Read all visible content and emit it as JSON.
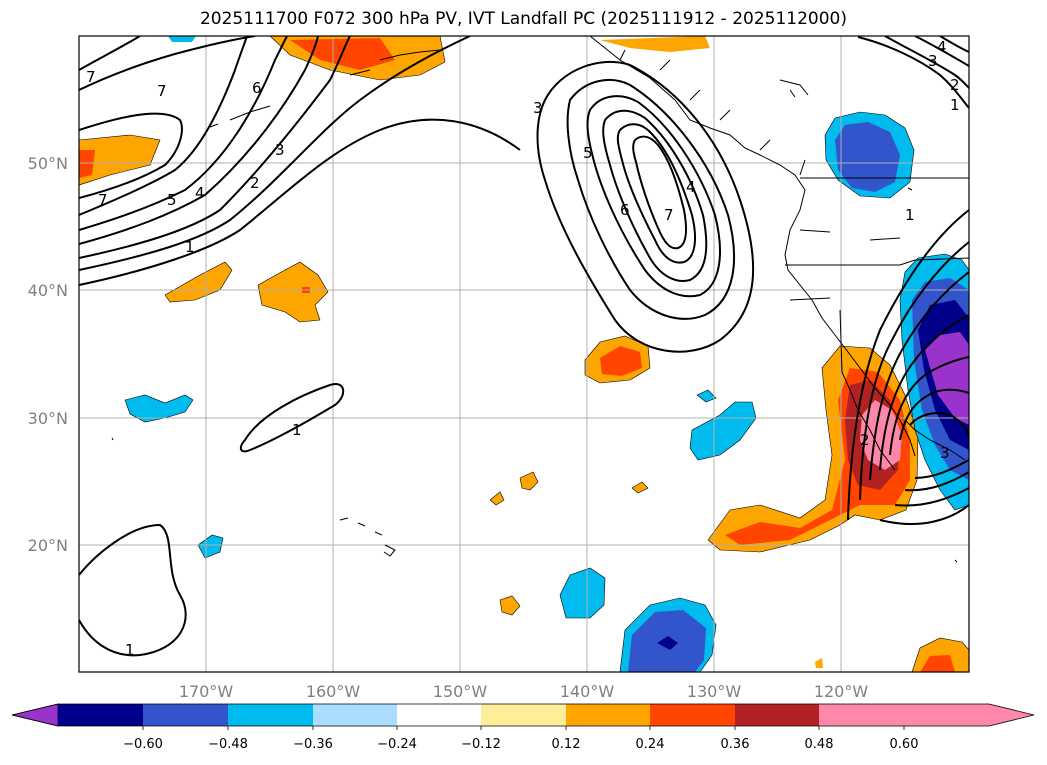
{
  "title": "2025111700 F072 300 hPa PV, IVT Landfall PC (2025111912 - 2025112000)",
  "lat_labels": [
    "50°N",
    "40°N",
    "30°N",
    "20°N"
  ],
  "lon_labels": [
    "170°W",
    "160°W",
    "150°W",
    "140°W",
    "130°W",
    "120°W"
  ],
  "colorbar": {
    "ticks": [
      "−0.60",
      "−0.48",
      "−0.36",
      "−0.24",
      "−0.12",
      "0.12",
      "0.24",
      "0.36",
      "0.48",
      "0.60"
    ],
    "colors": [
      "#9933cc",
      "#00008b",
      "#3355cc",
      "#00bbee",
      "#aaddff",
      "#ffffff",
      "#ffee99",
      "#ffa500",
      "#ff4500",
      "#b22222",
      "#ff88aa"
    ]
  },
  "contour_labels": {
    "a": "7",
    "b": "7",
    "c": "6",
    "d": "7",
    "e": "5",
    "f": "4",
    "g": "3",
    "h": "2",
    "i": "1",
    "j": "3",
    "k": "5",
    "l": "6",
    "m": "7",
    "n": "4",
    "o": "1",
    "p": "1",
    "q": "4",
    "r": "3",
    "s": "2",
    "t": "1",
    "u": "1",
    "v": "2",
    "w": "3"
  }
}
